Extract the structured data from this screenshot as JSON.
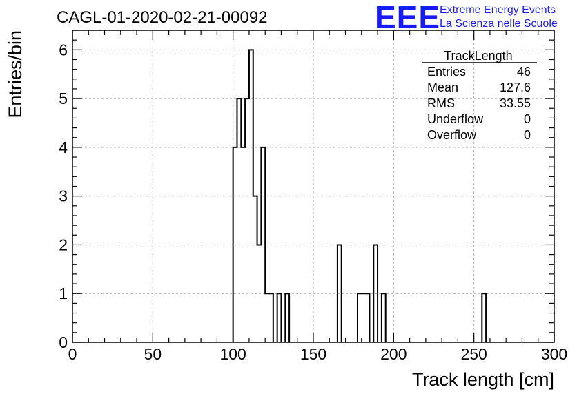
{
  "header": {
    "run_title": "CAGL-01-2020-02-21-00092",
    "logo_text": "EEE",
    "logo_line1": "Extreme Energy Events",
    "logo_line2": "La Scienza nelle Scuole"
  },
  "stats_box": {
    "title": "TrackLength",
    "rows": [
      {
        "label": "Entries",
        "value": "46"
      },
      {
        "label": "Mean",
        "value": "127.6"
      },
      {
        "label": "RMS",
        "value": "33.55"
      },
      {
        "label": "Underflow",
        "value": "0"
      },
      {
        "label": "Overflow",
        "value": "0"
      }
    ]
  },
  "chart_data": {
    "type": "bar",
    "histogram": true,
    "title": "CAGL-01-2020-02-21-00092",
    "xlabel": "Track length [cm]",
    "ylabel": "Entries/bin",
    "xlim": [
      0,
      300
    ],
    "ylim": [
      0,
      6.4
    ],
    "grid": true,
    "bin_width": 2.5,
    "x_ticks": [
      "0",
      "50",
      "100",
      "150",
      "200",
      "250",
      "300"
    ],
    "y_ticks": [
      "0",
      "1",
      "2",
      "3",
      "4",
      "5",
      "6"
    ],
    "bins": [
      {
        "x": 100.0,
        "value": 4
      },
      {
        "x": 102.5,
        "value": 5
      },
      {
        "x": 105.0,
        "value": 4
      },
      {
        "x": 107.5,
        "value": 5
      },
      {
        "x": 110.0,
        "value": 6
      },
      {
        "x": 112.5,
        "value": 3
      },
      {
        "x": 115.0,
        "value": 2
      },
      {
        "x": 117.5,
        "value": 4
      },
      {
        "x": 120.0,
        "value": 1
      },
      {
        "x": 122.5,
        "value": 1
      },
      {
        "x": 127.5,
        "value": 1
      },
      {
        "x": 132.5,
        "value": 1
      },
      {
        "x": 165.0,
        "value": 2
      },
      {
        "x": 177.5,
        "value": 1
      },
      {
        "x": 180.0,
        "value": 1
      },
      {
        "x": 182.5,
        "value": 1
      },
      {
        "x": 187.5,
        "value": 2
      },
      {
        "x": 192.5,
        "value": 1
      },
      {
        "x": 255.0,
        "value": 1
      }
    ]
  }
}
